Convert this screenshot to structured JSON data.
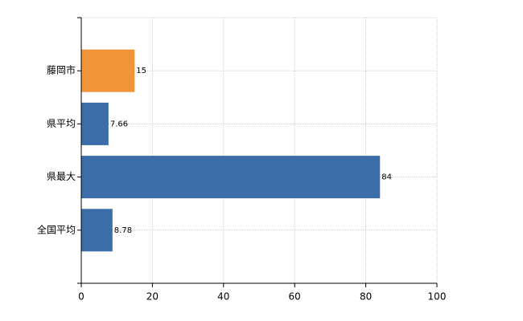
{
  "chart_data": {
    "type": "bar",
    "orientation": "horizontal",
    "categories": [
      "藤岡市",
      "県平均",
      "県最大",
      "全国平均"
    ],
    "values": [
      15,
      7.66,
      84,
      8.78
    ],
    "colors": [
      "#f0943a",
      "#3b6ea8",
      "#3b6ea8",
      "#3b6ea8"
    ],
    "xlim": [
      0,
      100
    ],
    "xticks": [
      0,
      20,
      40,
      60,
      80,
      100
    ],
    "grid": true
  }
}
